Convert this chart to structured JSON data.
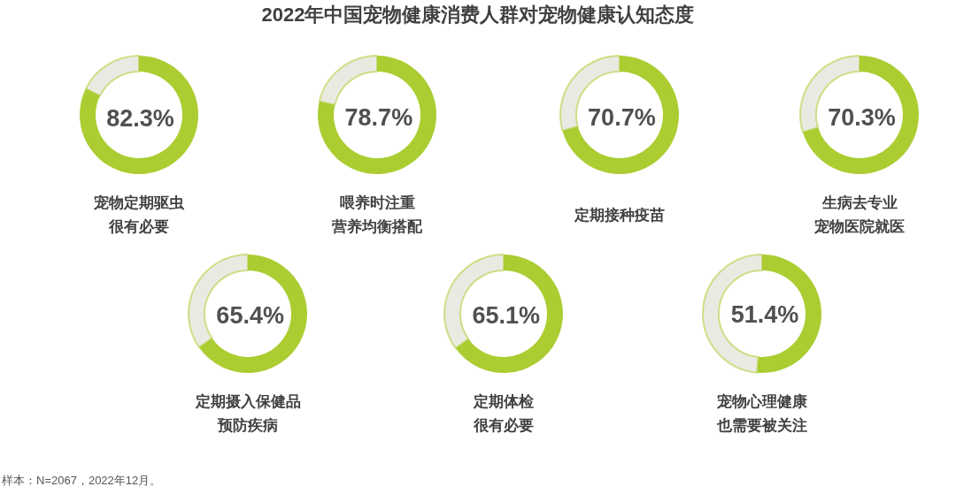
{
  "chart_data": [
    {
      "type": "other",
      "title": "2022年中国宠物健康消费人群对宠物健康认知态度"
    },
    {
      "type": "donut",
      "title": "宠物定期驱虫",
      "subtitle": "很有必要",
      "categories": [
        null,
        null
      ],
      "values": [
        82.3,
        17.7
      ],
      "colors": [
        "#abcd32",
        "#ebeae2"
      ],
      "value_labels": [
        "82.3%",
        null
      ]
    },
    {
      "type": "donut",
      "title": "喂养时注重",
      "subtitle": "营养均衡搭配",
      "categories": [
        null,
        null
      ],
      "values": [
        78.7,
        21.3
      ],
      "colors": [
        "#abcd32",
        "#ebeae2"
      ],
      "value_labels": [
        "78.7%",
        null
      ]
    },
    {
      "type": "donut",
      "title": "定期接种疫苗",
      "categories": [
        null,
        null
      ],
      "values": [
        70.7,
        29.3
      ],
      "colors": [
        "#abcd32",
        "#ebeae2"
      ],
      "value_labels": [
        "70.7%",
        null
      ]
    },
    {
      "type": "donut",
      "title": "生病去专业",
      "subtitle": "宠物医院就医",
      "categories": [
        null,
        null
      ],
      "values": [
        70.3,
        29.7
      ],
      "colors": [
        "#abcd32",
        "#ebeae2"
      ],
      "value_labels": [
        "70.3%",
        null
      ]
    },
    {
      "type": "donut",
      "title": "定期摄入保健品",
      "subtitle": "预防疾病",
      "categories": [
        null,
        null
      ],
      "values": [
        65.4,
        34.6
      ],
      "colors": [
        "#abcd32",
        "#ebeae2"
      ],
      "value_labels": [
        "65.4%",
        null
      ]
    },
    {
      "type": "donut",
      "title": "定期体检",
      "subtitle": "很有必要",
      "categories": [
        null,
        null
      ],
      "values": [
        65.1,
        34.9
      ],
      "colors": [
        "#abcd32",
        "#ebeae2"
      ],
      "value_labels": [
        "65.1%",
        null
      ]
    },
    {
      "type": "donut",
      "title": "宠物心理健康",
      "subtitle": "也需要被关注",
      "categories": [
        null,
        null
      ],
      "values": [
        51.4,
        48.6
      ],
      "colors": [
        "#abcd32",
        "#ebeae2"
      ],
      "value_labels": [
        "51.4%",
        null
      ]
    },
    {
      "type": "other",
      "annotations": [
        "样本：N=2067，2022年12月。"
      ]
    }
  ]
}
